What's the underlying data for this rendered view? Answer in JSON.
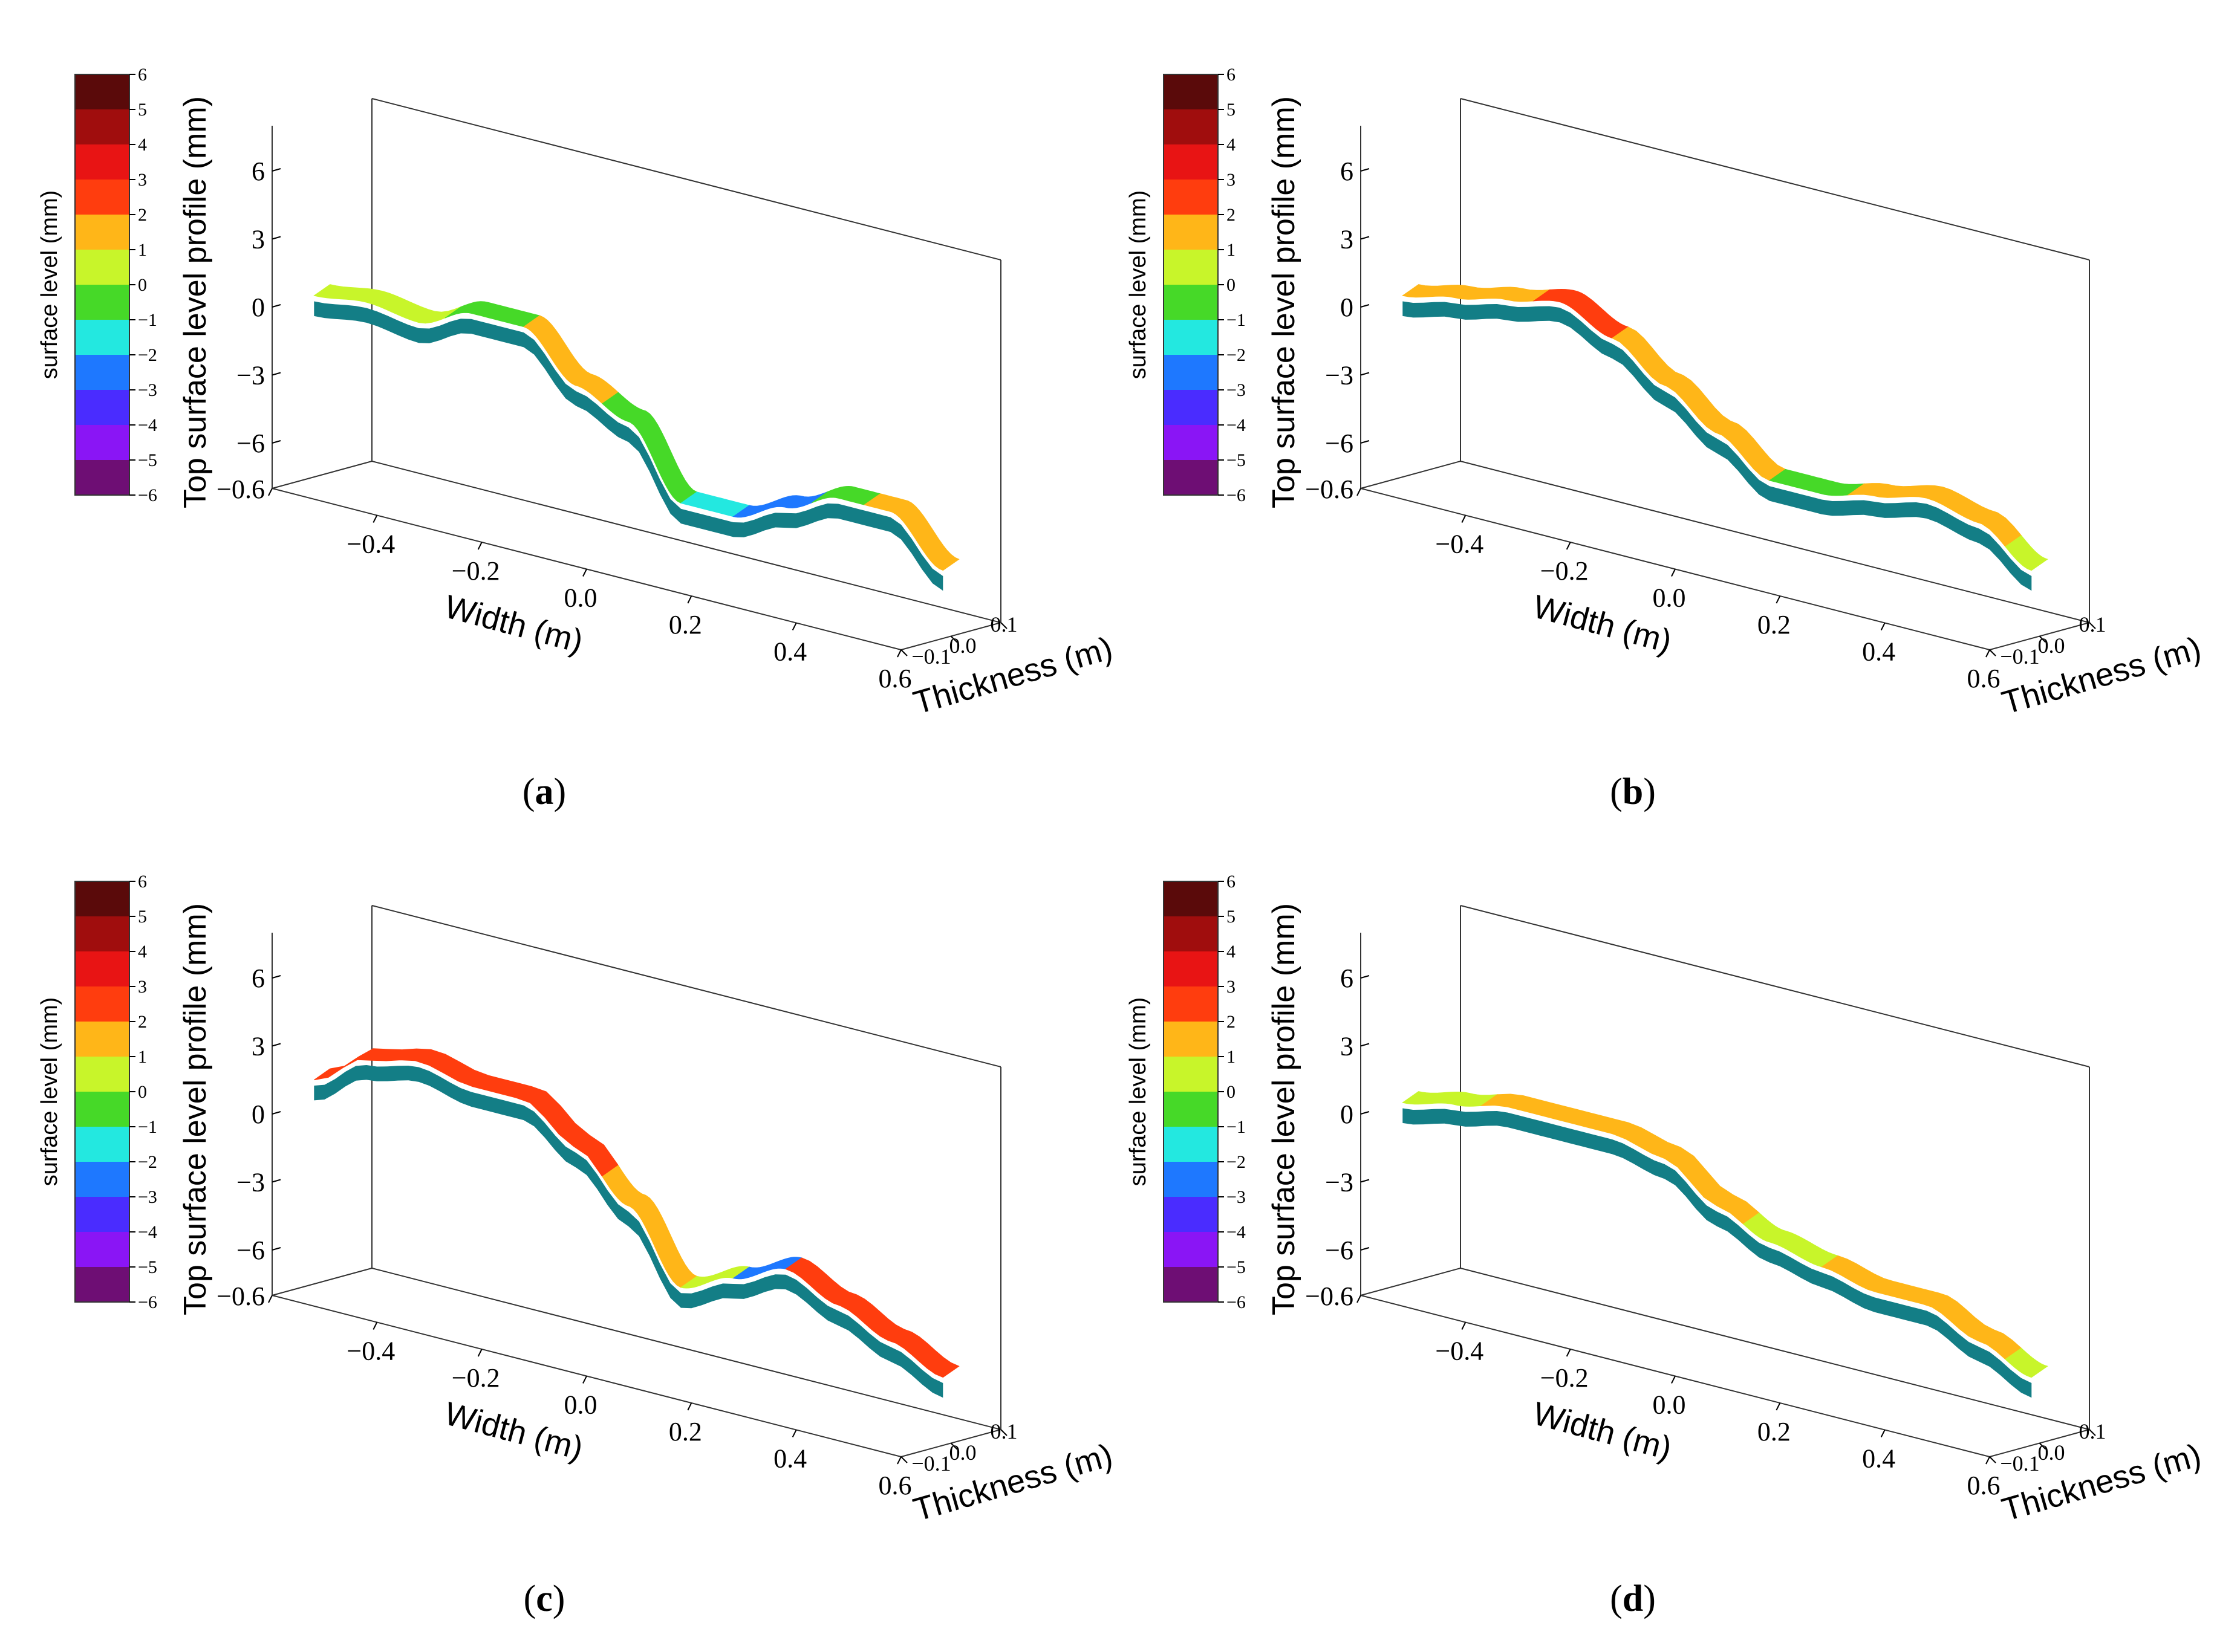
{
  "figure": {
    "panels": [
      {
        "id": "a",
        "caption": "(a)",
        "caption_letter": "a",
        "chart_data": {
          "type": "surface",
          "title": "",
          "xlabel": "Width (m)",
          "ylabel": "Thickness (m)",
          "zlabel": "Top surface level profile (mm)",
          "x_ticks": [
            "−0.6",
            "−0.4",
            "−0.2",
            "0.0",
            "0.2",
            "0.4",
            "0.6"
          ],
          "y_ticks": [
            "−0.1",
            "0.0",
            "0.1"
          ],
          "z_ticks": [
            "−6",
            "−3",
            "0",
            "3",
            "6"
          ],
          "xlim": [
            -0.6,
            0.6
          ],
          "ylim": [
            -0.1,
            0.1
          ],
          "zlim": [
            -8,
            8
          ],
          "width_positions": [
            -0.6,
            -0.5,
            -0.4,
            -0.3,
            -0.2,
            -0.1,
            0.0,
            0.1,
            0.2,
            0.3,
            0.4,
            0.5,
            0.6
          ],
          "profile": [
            0,
            0.3,
            0,
            1,
            1,
            -1,
            -2,
            -5,
            -5,
            -4,
            -3,
            -3,
            -5
          ],
          "surface_regions": [
            {
              "x": [
                -0.6,
                -0.35
              ],
              "level": 0
            },
            {
              "x": [
                -0.35,
                -0.2
              ],
              "level": -1
            },
            {
              "x": [
                -0.2,
                -0.05
              ],
              "level": 1
            },
            {
              "x": [
                -0.05,
                0.1
              ],
              "level": -1
            },
            {
              "x": [
                0.1,
                0.2
              ],
              "level": -2
            },
            {
              "x": [
                0.2,
                0.35
              ],
              "level": -3
            },
            {
              "x": [
                0.35,
                0.45
              ],
              "level": -1
            },
            {
              "x": [
                0.45,
                0.6
              ],
              "level": 1
            }
          ]
        }
      },
      {
        "id": "b",
        "caption": "(b)",
        "caption_letter": "b",
        "chart_data": {
          "type": "surface",
          "title": "",
          "xlabel": "Width (m)",
          "ylabel": "Thickness (m)",
          "zlabel": "Top surface level profile (mm)",
          "x_ticks": [
            "−0.6",
            "−0.4",
            "−0.2",
            "0.0",
            "0.2",
            "0.4",
            "0.6"
          ],
          "y_ticks": [
            "−0.1",
            "0.0",
            "0.1"
          ],
          "z_ticks": [
            "−6",
            "−3",
            "0",
            "3",
            "6"
          ],
          "xlim": [
            -0.6,
            0.6
          ],
          "ylim": [
            -0.1,
            0.1
          ],
          "zlim": [
            -8,
            8
          ],
          "width_positions": [
            -0.6,
            -0.5,
            -0.4,
            -0.3,
            -0.2,
            -0.1,
            0.0,
            0.1,
            0.2,
            0.3,
            0.4,
            0.5,
            0.6
          ],
          "profile": [
            0,
            0.5,
            1,
            1.5,
            0.5,
            -1,
            -2.5,
            -4,
            -4,
            -3.5,
            -3,
            -3.5,
            -5
          ],
          "surface_regions": [
            {
              "x": [
                -0.6,
                -0.35
              ],
              "level": 1
            },
            {
              "x": [
                -0.35,
                -0.2
              ],
              "level": 2
            },
            {
              "x": [
                -0.2,
                0.1
              ],
              "level": 1
            },
            {
              "x": [
                0.1,
                0.25
              ],
              "level": -1
            },
            {
              "x": [
                0.25,
                0.55
              ],
              "level": 1
            },
            {
              "x": [
                0.55,
                0.6
              ],
              "level": 0
            }
          ]
        }
      },
      {
        "id": "c",
        "caption": "(c)",
        "caption_letter": "c",
        "chart_data": {
          "type": "surface",
          "title": "",
          "xlabel": "Width (m)",
          "ylabel": "Thickness (m)",
          "zlabel": "Top surface level profile (mm)",
          "x_ticks": [
            "−0.6",
            "−0.4",
            "−0.2",
            "0.0",
            "0.2",
            "0.4",
            "0.6"
          ],
          "y_ticks": [
            "−0.1",
            "0.0",
            "0.1"
          ],
          "z_ticks": [
            "−6",
            "−3",
            "0",
            "3",
            "6"
          ],
          "xlim": [
            -0.6,
            0.6
          ],
          "ylim": [
            -0.1,
            0.1
          ],
          "zlim": [
            -8,
            8
          ],
          "width_positions": [
            -0.6,
            -0.5,
            -0.4,
            -0.3,
            -0.2,
            -0.1,
            0.0,
            0.1,
            0.2,
            0.3,
            0.4,
            0.5,
            0.6
          ],
          "profile": [
            1,
            2.5,
            3,
            2.5,
            2.5,
            1,
            -1,
            -4,
            -3,
            -2,
            -3,
            -4,
            -5
          ],
          "surface_regions": [
            {
              "x": [
                -0.6,
                -0.05
              ],
              "level": 2
            },
            {
              "x": [
                -0.05,
                0.1
              ],
              "level": 1
            },
            {
              "x": [
                0.1,
                0.2
              ],
              "level": 0
            },
            {
              "x": [
                0.2,
                0.3
              ],
              "level": -3
            },
            {
              "x": [
                0.3,
                0.6
              ],
              "level": 2
            }
          ]
        }
      },
      {
        "id": "d",
        "caption": "(d)",
        "caption_letter": "d",
        "chart_data": {
          "type": "surface",
          "title": "",
          "xlabel": "Width (m)",
          "ylabel": "Thickness (m)",
          "zlabel": "Top surface level profile (mm)",
          "x_ticks": [
            "−0.6",
            "−0.4",
            "−0.2",
            "0.0",
            "0.2",
            "0.4",
            "0.6"
          ],
          "y_ticks": [
            "−0.1",
            "0.0",
            "0.1"
          ],
          "z_ticks": [
            "−6",
            "−3",
            "0",
            "3",
            "6"
          ],
          "xlim": [
            -0.6,
            0.6
          ],
          "ylim": [
            -0.1,
            0.1
          ],
          "zlim": [
            -8,
            8
          ],
          "width_positions": [
            -0.6,
            -0.5,
            -0.4,
            -0.3,
            -0.2,
            -0.1,
            0.0,
            0.1,
            0.2,
            0.3,
            0.4,
            0.5,
            0.6
          ],
          "profile": [
            0,
            0.5,
            1,
            1,
            1,
            0.5,
            -1,
            -2,
            -2.5,
            -3,
            -3,
            -4,
            -5
          ],
          "surface_regions": [
            {
              "x": [
                -0.6,
                -0.45
              ],
              "level": 0
            },
            {
              "x": [
                -0.45,
                0.05
              ],
              "level": 1
            },
            {
              "x": [
                0.05,
                0.2
              ],
              "level": 0
            },
            {
              "x": [
                0.2,
                0.55
              ],
              "level": 1
            },
            {
              "x": [
                0.55,
                0.6
              ],
              "level": 0
            }
          ]
        }
      }
    ],
    "colorbar": {
      "label": "surface level (mm)",
      "tick_labels": [
        "6",
        "5",
        "4",
        "3",
        "2",
        "1",
        "0",
        "−1",
        "−2",
        "−3",
        "−4",
        "−5",
        "−6"
      ],
      "bands": [
        {
          "level": 5,
          "color": "#5a0a0a"
        },
        {
          "level": 4,
          "color": "#a00d0d"
        },
        {
          "level": 3,
          "color": "#e81414"
        },
        {
          "level": 2,
          "color": "#ff3d0e"
        },
        {
          "level": 1,
          "color": "#ffb618"
        },
        {
          "level": 0,
          "color": "#c8f52a"
        },
        {
          "level": -1,
          "color": "#46d928"
        },
        {
          "level": -2,
          "color": "#23e8e0"
        },
        {
          "level": -3,
          "color": "#1e78ff"
        },
        {
          "level": -4,
          "color": "#4a2cff"
        },
        {
          "level": -5,
          "color": "#8a15f5"
        },
        {
          "level": -6,
          "color": "#6e0e74"
        }
      ],
      "underside_color": "#137e86"
    }
  }
}
